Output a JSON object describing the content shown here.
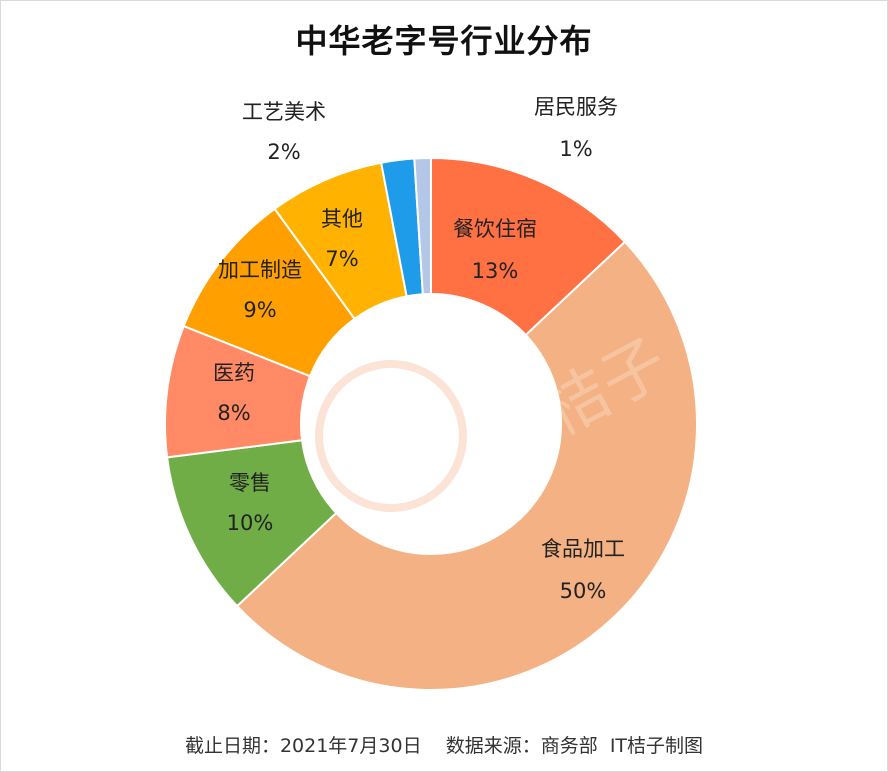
{
  "chart_data": {
    "type": "pie",
    "title": "中华老字号行业分布",
    "slices": [
      {
        "label": "餐饮住宿",
        "value": 13,
        "value_label": "13%",
        "color": "#FF7043"
      },
      {
        "label": "食品加工",
        "value": 50,
        "value_label": "50%",
        "color": "#F4B183"
      },
      {
        "label": "零售",
        "value": 10,
        "value_label": "10%",
        "color": "#70AD47"
      },
      {
        "label": "医药",
        "value": 8,
        "value_label": "8%",
        "color": "#FF8A65"
      },
      {
        "label": "加工制造",
        "value": 9,
        "value_label": "9%",
        "color": "#FFA000"
      },
      {
        "label": "其他",
        "value": 7,
        "value_label": "7%",
        "color": "#FFB300"
      },
      {
        "label": "工艺美术",
        "value": 2,
        "value_label": "2%",
        "color": "#1E9BE9"
      },
      {
        "label": "居民服务",
        "value": 1,
        "value_label": "1%",
        "color": "#B4C7E7"
      }
    ],
    "watermark_text": "IT桔子"
  },
  "footer": {
    "date_text": "截止日期：2021年7月30日",
    "source_text": "数据来源：商务部  IT桔子制图"
  }
}
